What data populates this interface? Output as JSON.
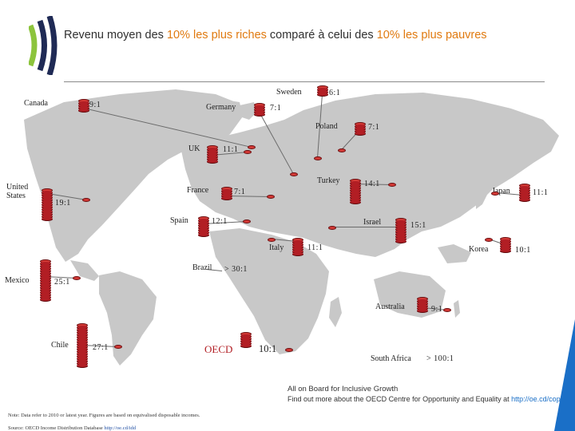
{
  "header": {
    "title_parts": [
      {
        "text": "Revenu moyen des ",
        "hl": false
      },
      {
        "text": "10% les plus riches",
        "hl": true
      },
      {
        "text": " comparé à celui des ",
        "hl": false
      },
      {
        "text": "10% les plus pauvres",
        "hl": true
      }
    ]
  },
  "colors": {
    "accent": "#e07a10",
    "coin": "#b21e24",
    "map": "#c8c8c8",
    "logo_green": "#8cc43c",
    "logo_dark": "#1f2a55"
  },
  "countries": [
    {
      "key": "canada",
      "name": "Canada",
      "ratio": "9:1",
      "coins": 5
    },
    {
      "key": "germany",
      "name": "Germany",
      "ratio": "7:1",
      "coins": 5
    },
    {
      "key": "sweden",
      "name": "Sweden",
      "ratio": "6:1",
      "coins": 4
    },
    {
      "key": "poland",
      "name": "Poland",
      "ratio": "7:1",
      "coins": 5
    },
    {
      "key": "uk",
      "name": "UK",
      "ratio": "11:1",
      "coins": 7
    },
    {
      "key": "us",
      "name": "United States",
      "ratio": "19:1",
      "coins": 13
    },
    {
      "key": "france",
      "name": "France",
      "ratio": "7:1",
      "coins": 5
    },
    {
      "key": "turkey",
      "name": "Turkey",
      "ratio": "14:1",
      "coins": 10
    },
    {
      "key": "japan",
      "name": "Japan",
      "ratio": "11:1",
      "coins": 7
    },
    {
      "key": "spain",
      "name": "Spain",
      "ratio": "12:1",
      "coins": 8
    },
    {
      "key": "israel",
      "name": "Israel",
      "ratio": "15:1",
      "coins": 10
    },
    {
      "key": "italy",
      "name": "Italy",
      "ratio": "11:1",
      "coins": 7
    },
    {
      "key": "korea",
      "name": "Korea",
      "ratio": "10:1",
      "coins": 6
    },
    {
      "key": "brazil",
      "name": "Brazil",
      "ratio": "> 30:1",
      "coins": 0
    },
    {
      "key": "mexico",
      "name": "Mexico",
      "ratio": "25:1",
      "coins": 17
    },
    {
      "key": "australia",
      "name": "Australia",
      "ratio": "9:1",
      "coins": 6
    },
    {
      "key": "chile",
      "name": "Chile",
      "ratio": "27:1",
      "coins": 18
    },
    {
      "key": "oecd",
      "name": "OECD",
      "ratio": "10:1",
      "coins": 6
    },
    {
      "key": "south_africa",
      "name": "South Africa",
      "ratio": "> 100:1",
      "coins": 0
    }
  ],
  "footer": {
    "note": "Note: Data refer to 2010 or latest year. Figures are based on equivalised disposable incomes.",
    "source_prefix": "Source: OECD Income Distribution Database ",
    "source_link": "http://oe.cd/idd",
    "board_line1": "All on Board for Inclusive Growth",
    "board_line2_prefix": "Find out more about the OECD Centre for Opportunity and Equality at ",
    "board_link": "http://oe.cd/cope"
  }
}
